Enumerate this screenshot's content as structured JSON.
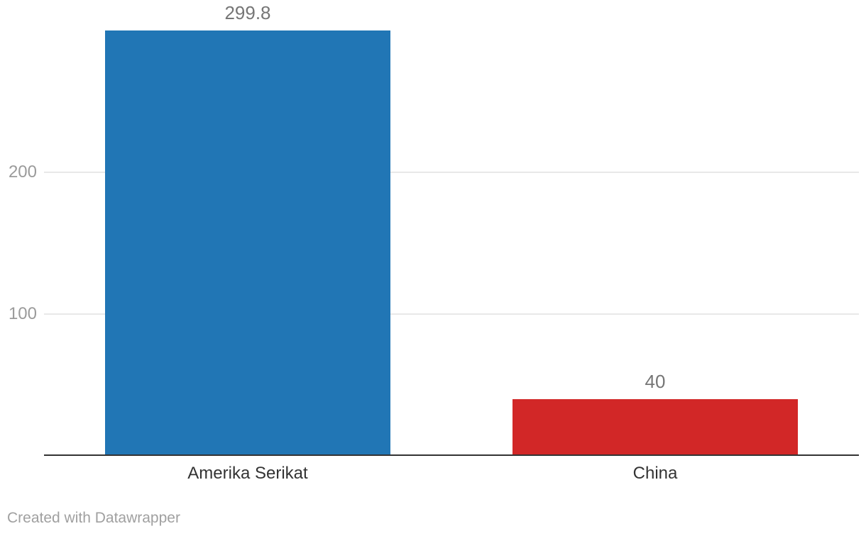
{
  "chart_data": {
    "type": "bar",
    "categories": [
      "Amerika Serikat",
      "China"
    ],
    "values": [
      299.8,
      40
    ],
    "value_labels": [
      "299.8",
      "40"
    ],
    "bar_colors": [
      "#2176b5",
      "#d22727"
    ],
    "yticks": [
      100,
      200
    ],
    "ytick_labels": [
      "100",
      "200"
    ],
    "ylim": [
      0,
      300
    ],
    "grid": true,
    "legend_position": "none",
    "xlabel": "",
    "ylabel": ""
  },
  "attribution": {
    "label": "Created with Datawrapper"
  },
  "colors": {
    "bar_blue": "#2176b5",
    "bar_red": "#d22727",
    "axis_line": "#333333",
    "gridline": "#e8e8e8",
    "value_label": "#767676",
    "tick_label": "#9b9b9b",
    "category_label": "#333333",
    "attribution": "#a0a0a0",
    "background": "#ffffff"
  }
}
